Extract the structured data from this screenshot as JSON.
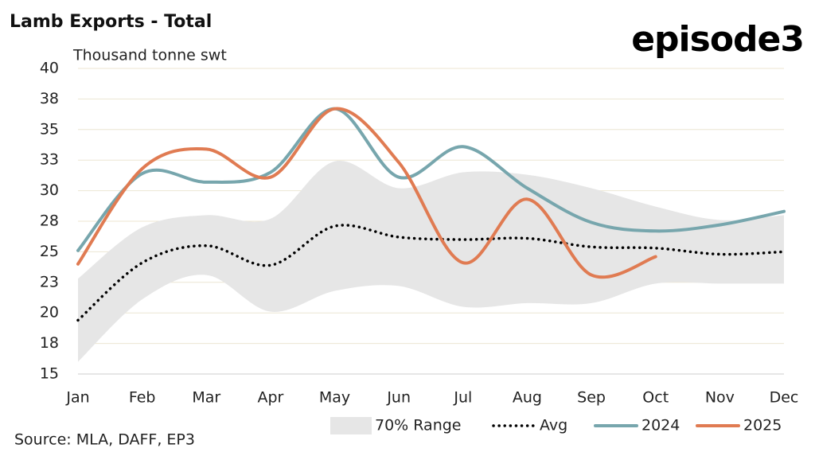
{
  "chart_data": {
    "type": "line",
    "title": "Lamb Exports - Total",
    "subtitle": "Thousand tonne swt",
    "source": "Source: MLA, DAFF, EP3",
    "brand": "episode3",
    "categories": [
      "Jan",
      "Feb",
      "Mar",
      "Apr",
      "May",
      "Jun",
      "Jul",
      "Aug",
      "Sep",
      "Oct",
      "Nov",
      "Dec"
    ],
    "ylim": [
      15,
      40
    ],
    "yticks": [
      15,
      {
        "value": 17.5,
        "label": "18"
      },
      20,
      {
        "value": 22.5,
        "label": "23"
      },
      25,
      {
        "value": 27.5,
        "label": "28"
      },
      30,
      {
        "value": 32.5,
        "label": "33"
      },
      35,
      {
        "value": 37.5,
        "label": "38"
      },
      40
    ],
    "grid": true,
    "range": {
      "name": "70% Range",
      "color": "#e6e6e6",
      "high": [
        22.8,
        27.0,
        28.0,
        27.7,
        32.4,
        30.2,
        31.5,
        31.3,
        30.2,
        28.7,
        27.6,
        28.0
      ],
      "low": [
        16.0,
        21.1,
        23.1,
        20.1,
        21.8,
        22.2,
        20.5,
        20.8,
        20.8,
        22.4,
        22.4,
        22.4
      ]
    },
    "series": [
      {
        "name": "Avg",
        "color": "#000000",
        "dotted": true,
        "values": [
          19.4,
          24.1,
          25.5,
          23.9,
          27.1,
          26.2,
          26.0,
          26.1,
          25.4,
          25.3,
          24.8,
          25.0
        ]
      },
      {
        "name": "2024",
        "color": "#77a6ad",
        "values": [
          25.1,
          31.4,
          30.7,
          31.5,
          36.7,
          31.1,
          33.6,
          30.2,
          27.4,
          26.7,
          27.2,
          28.3
        ]
      },
      {
        "name": "2025",
        "color": "#e07b52",
        "values": [
          24.0,
          31.8,
          33.4,
          31.1,
          36.7,
          32.3,
          24.1,
          29.3,
          23.1,
          24.6,
          null,
          null
        ]
      }
    ]
  }
}
